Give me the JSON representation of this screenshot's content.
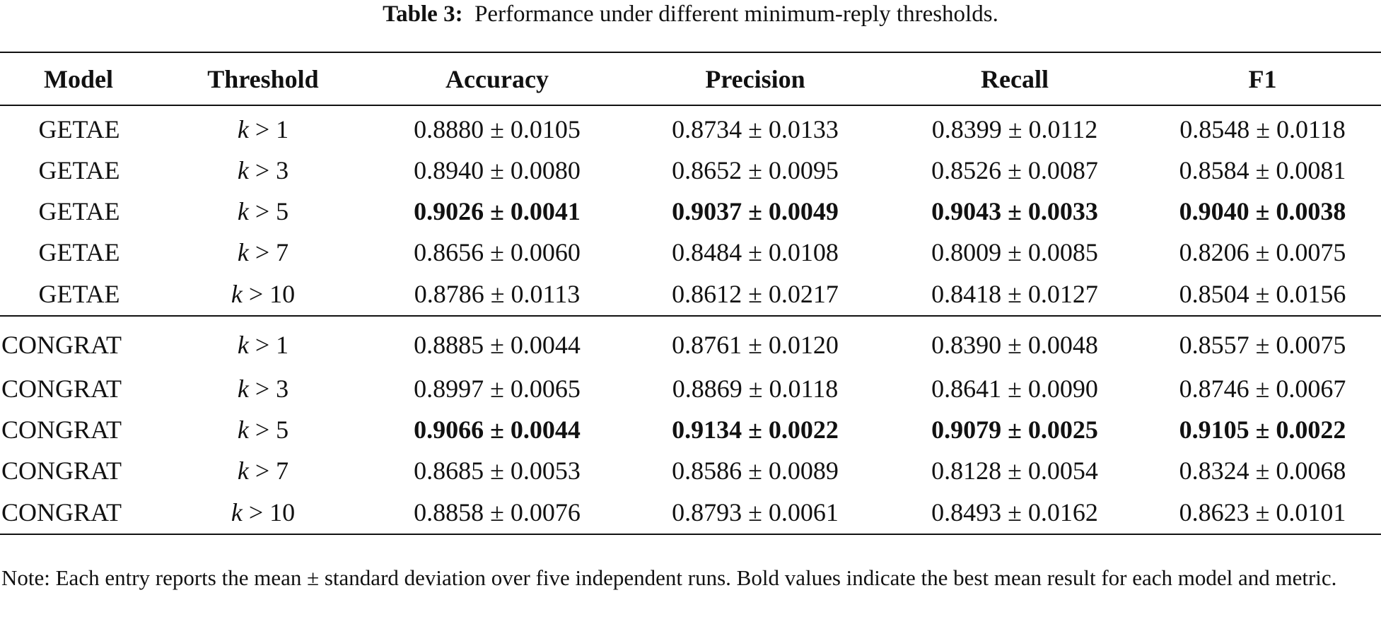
{
  "caption": {
    "label": "Table 3:",
    "text": "Performance under different minimum-reply thresholds."
  },
  "table": {
    "headers": [
      "Model",
      "Threshold",
      "Accuracy",
      "Precision",
      "Recall",
      "F1"
    ],
    "groups": [
      {
        "rows": [
          {
            "model": "GETAE",
            "k": "k",
            "threshold": " > 1",
            "accuracy": "0.8880 ± 0.0105",
            "precision": "0.8734 ± 0.0133",
            "recall": "0.8399 ± 0.0112",
            "f1": "0.8548 ± 0.0118",
            "bold": false
          },
          {
            "model": "GETAE",
            "k": "k",
            "threshold": " > 3",
            "accuracy": "0.8940 ± 0.0080",
            "precision": "0.8652 ± 0.0095",
            "recall": "0.8526 ± 0.0087",
            "f1": "0.8584 ± 0.0081",
            "bold": false
          },
          {
            "model": "GETAE",
            "k": "k",
            "threshold": " > 5",
            "accuracy": "0.9026 ± 0.0041",
            "precision": "0.9037 ± 0.0049",
            "recall": "0.9043 ± 0.0033",
            "f1": "0.9040 ± 0.0038",
            "bold": true
          },
          {
            "model": "GETAE",
            "k": "k",
            "threshold": " > 7",
            "accuracy": "0.8656 ± 0.0060",
            "precision": "0.8484 ± 0.0108",
            "recall": "0.8009 ± 0.0085",
            "f1": "0.8206 ± 0.0075",
            "bold": false
          },
          {
            "model": "GETAE",
            "k": "k",
            "threshold": " > 10",
            "accuracy": "0.8786 ± 0.0113",
            "precision": "0.8612 ± 0.0217",
            "recall": "0.8418 ± 0.0127",
            "f1": "0.8504 ± 0.0156",
            "bold": false
          }
        ]
      },
      {
        "rows": [
          {
            "model": "CONGRAT",
            "k": "k",
            "threshold": " > 1",
            "accuracy": "0.8885 ± 0.0044",
            "precision": "0.8761 ± 0.0120",
            "recall": "0.8390 ± 0.0048",
            "f1": "0.8557 ± 0.0075",
            "bold": false
          },
          {
            "model": "CONGRAT",
            "k": "k",
            "threshold": " > 3",
            "accuracy": "0.8997 ± 0.0065",
            "precision": "0.8869 ± 0.0118",
            "recall": "0.8641 ± 0.0090",
            "f1": "0.8746 ± 0.0067",
            "bold": false
          },
          {
            "model": "CONGRAT",
            "k": "k",
            "threshold": " > 5",
            "accuracy": "0.9066 ± 0.0044",
            "precision": "0.9134 ± 0.0022",
            "recall": "0.9079 ± 0.0025",
            "f1": "0.9105 ± 0.0022",
            "bold": true
          },
          {
            "model": "CONGRAT",
            "k": "k",
            "threshold": " > 7",
            "accuracy": "0.8685 ± 0.0053",
            "precision": "0.8586 ± 0.0089",
            "recall": "0.8128 ± 0.0054",
            "f1": "0.8324 ± 0.0068",
            "bold": false
          },
          {
            "model": "CONGRAT",
            "k": "k",
            "threshold": " > 10",
            "accuracy": "0.8858 ± 0.0076",
            "precision": "0.8793 ± 0.0061",
            "recall": "0.8493 ± 0.0162",
            "f1": "0.8623 ± 0.0101",
            "bold": false
          }
        ]
      }
    ]
  },
  "note": "Note: Each entry reports the mean ± standard deviation over five independent runs. Bold values indicate the best mean result for each model and metric."
}
